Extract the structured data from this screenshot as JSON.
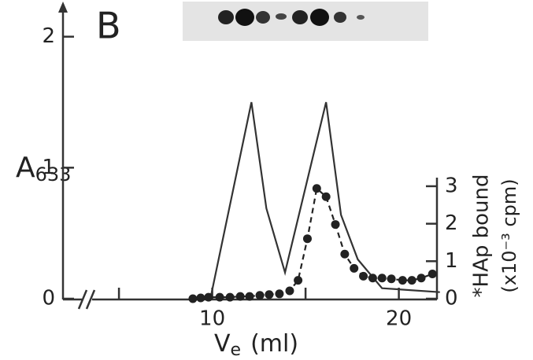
{
  "chart_data": {
    "type": "line",
    "panel_label": "B",
    "ylabel": "A",
    "ylabel_sub": "633",
    "xlabel": "V",
    "xlabel_sub": "e",
    "xlabel_unit": "(ml)",
    "y2label": "*HAp bound",
    "y2label_unit": "(x10⁻³ cpm)",
    "xlim": [
      2,
      22
    ],
    "xticks": [
      10,
      20
    ],
    "xminor_ticks": [
      5,
      15
    ],
    "ylim": [
      0,
      2.25
    ],
    "yticks": [
      0,
      1,
      2
    ],
    "y2lim": [
      0,
      3.25
    ],
    "y2ticks": [
      0,
      1,
      2,
      3
    ],
    "series": [
      {
        "color": "#333333",
        "dashed": false,
        "markers": false,
        "x": [
          9.9,
          12.1,
          12.9,
          13.9,
          16.1,
          16.9,
          17.8,
          19.1,
          22.2
        ],
        "values": [
          0,
          1.5,
          0.69,
          0.2,
          1.5,
          0.64,
          0.3,
          0.08,
          0.05
        ]
      },
      {
        "color": "#222222",
        "dashed": true,
        "markers": true,
        "axis": "y2",
        "x": [
          8.96,
          9.38,
          9.8,
          10.4,
          10.95,
          11.5,
          12.0,
          12.55,
          13.05,
          13.6,
          14.15,
          14.6,
          15.1,
          15.6,
          16.1,
          16.6,
          17.1,
          17.6,
          18.1,
          18.6,
          19.1,
          19.6,
          20.2,
          20.7,
          21.2,
          21.8
        ],
        "values": [
          0,
          0.02,
          0.04,
          0.04,
          0.04,
          0.06,
          0.06,
          0.09,
          0.11,
          0.13,
          0.21,
          0.49,
          1.6,
          2.94,
          2.72,
          1.98,
          1.19,
          0.81,
          0.6,
          0.55,
          0.55,
          0.53,
          0.49,
          0.49,
          0.55,
          0.66
        ]
      }
    ]
  }
}
